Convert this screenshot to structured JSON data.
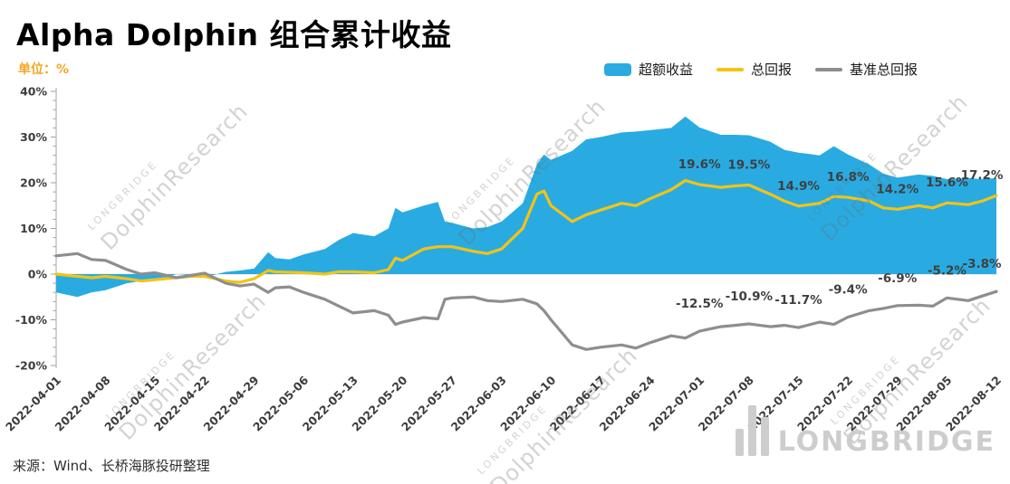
{
  "title": "Alpha Dolphin 组合累计收益",
  "unit_label": "单位：%",
  "source_note": "来源：Wind、长桥海豚投研整理",
  "watermark": {
    "brand": "LONGBRIDGE",
    "research": "DolphinResearch"
  },
  "logo_text": "LONGBRIDGE",
  "legend": [
    {
      "label": "超额收益",
      "color": "#29ABE2",
      "type": "area"
    },
    {
      "label": "总回报",
      "color": "#F3C317",
      "type": "line"
    },
    {
      "label": "基准总回报",
      "color": "#8E8E8E",
      "type": "line"
    }
  ],
  "chart_data": {
    "type": "area",
    "title": "Alpha Dolphin 组合累计收益",
    "xlabel": "",
    "ylabel": "%",
    "ylim": [
      -20,
      40
    ],
    "ytick_major_step": 10,
    "ytick_minor_step": 2,
    "grid": "zero-line-only",
    "legend_position": "top-right",
    "x_max": 133,
    "x_tick_days": [
      0,
      7,
      14,
      21,
      28,
      35,
      42,
      49,
      56,
      63,
      70,
      77,
      84,
      91,
      98,
      105,
      112,
      119,
      126,
      133
    ],
    "x_tick_labels": [
      "2022-04-01",
      "2022-04-08",
      "2022-04-15",
      "2022-04-22",
      "2022-04-29",
      "2022-05-06",
      "2022-05-13",
      "2022-05-20",
      "2022-05-27",
      "2022-06-03",
      "2022-06-10",
      "2022-06-17",
      "2022-06-24",
      "2022-07-01",
      "2022-07-08",
      "2022-07-15",
      "2022-07-22",
      "2022-07-29",
      "2022-08-05",
      "2022-08-12"
    ],
    "days": [
      0,
      3,
      5,
      7,
      10,
      12,
      14,
      17,
      19,
      21,
      24,
      26,
      28,
      30,
      31,
      33,
      35,
      38,
      40,
      42,
      45,
      47,
      48,
      49,
      52,
      54,
      55,
      56,
      59,
      61,
      63,
      66,
      68,
      69,
      70,
      73,
      75,
      77,
      80,
      82,
      84,
      87,
      89,
      91,
      94,
      96,
      98,
      101,
      103,
      105,
      108,
      110,
      112,
      115,
      117,
      119,
      122,
      124,
      126,
      129,
      131,
      133
    ],
    "series": [
      {
        "name": "超额收益",
        "type": "area",
        "color": "#29ABE2",
        "values": [
          -4.0,
          -5.0,
          -4.0,
          -3.5,
          -2.0,
          -1.5,
          -1.5,
          0.0,
          -0.2,
          -0.7,
          0.5,
          0.8,
          1.2,
          4.8,
          3.5,
          3.2,
          4.3,
          5.5,
          7.5,
          9.0,
          8.3,
          10.0,
          14.5,
          13.5,
          15.0,
          15.8,
          11.5,
          11.2,
          10.0,
          10.3,
          11.5,
          15.5,
          24.0,
          26.2,
          25.0,
          27.0,
          29.5,
          30.0,
          31.0,
          31.2,
          31.5,
          32.0,
          34.5,
          32.1,
          30.5,
          30.5,
          30.4,
          29.0,
          27.2,
          26.6,
          26.0,
          28.0,
          26.2,
          24.0,
          22.0,
          21.1,
          21.8,
          21.5,
          20.8,
          21.0,
          20.8,
          21.0
        ]
      },
      {
        "name": "总回报",
        "type": "line",
        "color": "#F3C317",
        "values": [
          0.0,
          -0.5,
          -0.8,
          -0.5,
          -1.0,
          -1.5,
          -1.2,
          -0.8,
          -0.5,
          -0.5,
          -1.5,
          -1.8,
          -1.0,
          0.8,
          0.5,
          0.4,
          0.3,
          0.0,
          0.5,
          0.5,
          0.3,
          1.0,
          3.5,
          3.0,
          5.5,
          6.0,
          6.0,
          6.0,
          5.0,
          4.5,
          5.5,
          10.0,
          17.5,
          18.2,
          15.0,
          11.5,
          13.0,
          14.0,
          15.5,
          15.0,
          16.5,
          18.5,
          20.5,
          19.6,
          19.0,
          19.3,
          19.5,
          17.5,
          16.0,
          14.9,
          15.5,
          17.0,
          16.8,
          16.0,
          14.5,
          14.2,
          15.0,
          14.5,
          15.6,
          15.2,
          16.0,
          17.2
        ]
      },
      {
        "name": "基准总回报",
        "type": "line",
        "color": "#8E8E8E",
        "values": [
          4.0,
          4.5,
          3.2,
          3.0,
          1.0,
          0.0,
          0.3,
          -0.8,
          -0.3,
          0.2,
          -2.0,
          -2.6,
          -2.2,
          -4.0,
          -3.0,
          -2.8,
          -4.0,
          -5.5,
          -7.0,
          -8.5,
          -8.0,
          -9.0,
          -11.0,
          -10.5,
          -9.5,
          -9.8,
          -5.5,
          -5.2,
          -5.0,
          -5.8,
          -6.0,
          -5.5,
          -6.5,
          -8.0,
          -10.0,
          -15.5,
          -16.5,
          -16.0,
          -15.5,
          -16.2,
          -15.0,
          -13.5,
          -14.0,
          -12.5,
          -11.5,
          -11.2,
          -10.9,
          -11.5,
          -11.2,
          -11.7,
          -10.5,
          -11.0,
          -9.4,
          -8.0,
          -7.5,
          -6.9,
          -6.8,
          -7.0,
          -5.2,
          -5.8,
          -4.8,
          -3.8
        ]
      }
    ],
    "annotations": [
      {
        "series": "总回报",
        "day": 91,
        "value": 19.6,
        "label": "19.6%"
      },
      {
        "series": "总回报",
        "day": 98,
        "value": 19.5,
        "label": "19.5%"
      },
      {
        "series": "总回报",
        "day": 105,
        "value": 14.9,
        "label": "14.9%"
      },
      {
        "series": "总回报",
        "day": 112,
        "value": 16.8,
        "label": "16.8%"
      },
      {
        "series": "总回报",
        "day": 119,
        "value": 14.2,
        "label": "14.2%"
      },
      {
        "series": "总回报",
        "day": 126,
        "value": 15.6,
        "label": "15.6%"
      },
      {
        "series": "总回报",
        "day": 133,
        "value": 17.2,
        "label": "17.2%"
      },
      {
        "series": "基准总回报",
        "day": 91,
        "value": -12.5,
        "label": "-12.5%"
      },
      {
        "series": "基准总回报",
        "day": 98,
        "value": -10.9,
        "label": "-10.9%"
      },
      {
        "series": "基准总回报",
        "day": 105,
        "value": -11.7,
        "label": "-11.7%"
      },
      {
        "series": "基准总回报",
        "day": 112,
        "value": -9.4,
        "label": "-9.4%"
      },
      {
        "series": "基准总回报",
        "day": 119,
        "value": -6.9,
        "label": "-6.9%"
      },
      {
        "series": "基准总回报",
        "day": 126,
        "value": -5.2,
        "label": "-5.2%"
      },
      {
        "series": "基准总回报",
        "day": 133,
        "value": -3.8,
        "label": "-3.8%"
      }
    ]
  }
}
